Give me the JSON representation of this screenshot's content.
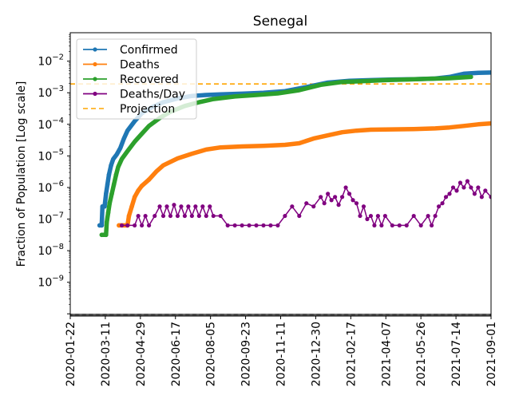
{
  "chart_data": {
    "type": "line",
    "title": "Senegal",
    "xlabel": "",
    "ylabel": "Fraction of Population [Log scale]",
    "yscale": "log",
    "ylim_log10": [
      -10.07,
      -1.1
    ],
    "xlim": [
      "2020-01-22",
      "2021-09-01"
    ],
    "grid": false,
    "legend_position": "top-left",
    "x_tick_labels": [
      "2020-01-22",
      "2020-03-11",
      "2020-04-29",
      "2020-06-17",
      "2020-08-05",
      "2020-09-23",
      "2020-11-11",
      "2020-12-30",
      "2021-02-17",
      "2021-04-07",
      "2021-05-26",
      "2021-07-14",
      "2021-09-01"
    ],
    "y_ticks": [
      {
        "exp": -2,
        "label_base": "10",
        "label_exp": "−2"
      },
      {
        "exp": -3,
        "label_base": "10",
        "label_exp": "−3"
      },
      {
        "exp": -4,
        "label_base": "10",
        "label_exp": "−4"
      },
      {
        "exp": -5,
        "label_base": "10",
        "label_exp": "−5"
      },
      {
        "exp": -6,
        "label_base": "10",
        "label_exp": "−6"
      },
      {
        "exp": -7,
        "label_base": "10",
        "label_exp": "−7"
      },
      {
        "exp": -8,
        "label_base": "10",
        "label_exp": "−8"
      },
      {
        "exp": -9,
        "label_base": "10",
        "label_exp": "−9"
      }
    ],
    "projection": {
      "name": "Projection",
      "value": 0.0019,
      "color": "#ffa500"
    },
    "series": [
      {
        "name": "Confirmed",
        "color": "#1f77b4",
        "points_day_log10": [
          [
            41,
            -7.2
          ],
          [
            44,
            -7.2
          ],
          [
            45,
            -6.6
          ],
          [
            48,
            -6.6
          ],
          [
            50,
            -6.2
          ],
          [
            52,
            -5.9
          ],
          [
            54,
            -5.6
          ],
          [
            57,
            -5.3
          ],
          [
            60,
            -5.1
          ],
          [
            65,
            -4.95
          ],
          [
            70,
            -4.75
          ],
          [
            75,
            -4.45
          ],
          [
            80,
            -4.2
          ],
          [
            90,
            -3.9
          ],
          [
            100,
            -3.65
          ],
          [
            115,
            -3.45
          ],
          [
            130,
            -3.3
          ],
          [
            150,
            -3.18
          ],
          [
            170,
            -3.1
          ],
          [
            190,
            -3.07
          ],
          [
            210,
            -3.05
          ],
          [
            240,
            -3.03
          ],
          [
            270,
            -3.0
          ],
          [
            300,
            -2.95
          ],
          [
            330,
            -2.82
          ],
          [
            360,
            -2.68
          ],
          [
            390,
            -2.62
          ],
          [
            420,
            -2.6
          ],
          [
            450,
            -2.58
          ],
          [
            480,
            -2.57
          ],
          [
            510,
            -2.55
          ],
          [
            530,
            -2.5
          ],
          [
            550,
            -2.4
          ],
          [
            570,
            -2.37
          ],
          [
            588,
            -2.36
          ]
        ]
      },
      {
        "name": "Deaths",
        "color": "#ff7f0e",
        "points_day_log10": [
          [
            68,
            -7.2
          ],
          [
            80,
            -7.2
          ],
          [
            82,
            -6.9
          ],
          [
            86,
            -6.6
          ],
          [
            90,
            -6.3
          ],
          [
            95,
            -6.1
          ],
          [
            100,
            -5.95
          ],
          [
            110,
            -5.75
          ],
          [
            120,
            -5.5
          ],
          [
            130,
            -5.3
          ],
          [
            150,
            -5.08
          ],
          [
            170,
            -4.93
          ],
          [
            190,
            -4.8
          ],
          [
            210,
            -4.73
          ],
          [
            240,
            -4.7
          ],
          [
            270,
            -4.68
          ],
          [
            300,
            -4.65
          ],
          [
            320,
            -4.6
          ],
          [
            340,
            -4.45
          ],
          [
            360,
            -4.35
          ],
          [
            380,
            -4.25
          ],
          [
            400,
            -4.2
          ],
          [
            420,
            -4.17
          ],
          [
            450,
            -4.16
          ],
          [
            480,
            -4.15
          ],
          [
            510,
            -4.13
          ],
          [
            530,
            -4.1
          ],
          [
            550,
            -4.05
          ],
          [
            570,
            -4.0
          ],
          [
            588,
            -3.97
          ]
        ]
      },
      {
        "name": "Recovered",
        "color": "#2ca02c",
        "points_day_log10": [
          [
            44,
            -7.5
          ],
          [
            50,
            -7.5
          ],
          [
            51,
            -7.1
          ],
          [
            53,
            -6.8
          ],
          [
            55,
            -6.5
          ],
          [
            58,
            -6.2
          ],
          [
            61,
            -5.9
          ],
          [
            64,
            -5.6
          ],
          [
            67,
            -5.35
          ],
          [
            72,
            -5.1
          ],
          [
            80,
            -4.85
          ],
          [
            90,
            -4.55
          ],
          [
            100,
            -4.3
          ],
          [
            110,
            -4.05
          ],
          [
            125,
            -3.8
          ],
          [
            140,
            -3.6
          ],
          [
            160,
            -3.42
          ],
          [
            180,
            -3.3
          ],
          [
            200,
            -3.2
          ],
          [
            230,
            -3.12
          ],
          [
            260,
            -3.07
          ],
          [
            290,
            -3.02
          ],
          [
            320,
            -2.92
          ],
          [
            350,
            -2.75
          ],
          [
            380,
            -2.66
          ],
          [
            410,
            -2.63
          ],
          [
            440,
            -2.6
          ],
          [
            470,
            -2.58
          ],
          [
            500,
            -2.56
          ],
          [
            530,
            -2.54
          ],
          [
            560,
            -2.5
          ]
        ]
      },
      {
        "name": "Deaths/Day",
        "color": "#800080",
        "points_day_log10": [
          [
            72,
            -7.2
          ],
          [
            80,
            -7.2
          ],
          [
            90,
            -7.2
          ],
          [
            95,
            -6.9
          ],
          [
            100,
            -7.2
          ],
          [
            105,
            -6.9
          ],
          [
            110,
            -7.2
          ],
          [
            118,
            -6.9
          ],
          [
            125,
            -6.6
          ],
          [
            130,
            -6.9
          ],
          [
            135,
            -6.6
          ],
          [
            140,
            -6.9
          ],
          [
            145,
            -6.55
          ],
          [
            150,
            -6.9
          ],
          [
            155,
            -6.6
          ],
          [
            160,
            -6.9
          ],
          [
            165,
            -6.6
          ],
          [
            170,
            -6.9
          ],
          [
            175,
            -6.6
          ],
          [
            180,
            -6.9
          ],
          [
            185,
            -6.6
          ],
          [
            190,
            -6.9
          ],
          [
            195,
            -6.6
          ],
          [
            200,
            -6.9
          ],
          [
            210,
            -6.9
          ],
          [
            220,
            -7.2
          ],
          [
            230,
            -7.2
          ],
          [
            240,
            -7.2
          ],
          [
            250,
            -7.2
          ],
          [
            260,
            -7.2
          ],
          [
            270,
            -7.2
          ],
          [
            280,
            -7.2
          ],
          [
            290,
            -7.2
          ],
          [
            300,
            -6.9
          ],
          [
            310,
            -6.6
          ],
          [
            320,
            -6.9
          ],
          [
            330,
            -6.5
          ],
          [
            340,
            -6.6
          ],
          [
            350,
            -6.3
          ],
          [
            355,
            -6.5
          ],
          [
            360,
            -6.2
          ],
          [
            365,
            -6.4
          ],
          [
            370,
            -6.3
          ],
          [
            375,
            -6.55
          ],
          [
            380,
            -6.3
          ],
          [
            385,
            -6.0
          ],
          [
            390,
            -6.2
          ],
          [
            395,
            -6.4
          ],
          [
            400,
            -6.5
          ],
          [
            405,
            -6.9
          ],
          [
            410,
            -6.6
          ],
          [
            415,
            -7.0
          ],
          [
            420,
            -6.9
          ],
          [
            425,
            -7.2
          ],
          [
            430,
            -6.9
          ],
          [
            435,
            -7.2
          ],
          [
            440,
            -6.9
          ],
          [
            450,
            -7.2
          ],
          [
            460,
            -7.2
          ],
          [
            470,
            -7.2
          ],
          [
            480,
            -6.9
          ],
          [
            490,
            -7.2
          ],
          [
            500,
            -6.9
          ],
          [
            505,
            -7.2
          ],
          [
            510,
            -6.9
          ],
          [
            515,
            -6.6
          ],
          [
            520,
            -6.5
          ],
          [
            525,
            -6.3
          ],
          [
            530,
            -6.2
          ],
          [
            535,
            -6.0
          ],
          [
            540,
            -6.1
          ],
          [
            545,
            -5.85
          ],
          [
            550,
            -6.0
          ],
          [
            555,
            -5.8
          ],
          [
            560,
            -6.0
          ],
          [
            565,
            -6.2
          ],
          [
            570,
            -6.0
          ],
          [
            575,
            -6.3
          ],
          [
            580,
            -6.1
          ],
          [
            588,
            -6.3
          ]
        ]
      }
    ]
  }
}
